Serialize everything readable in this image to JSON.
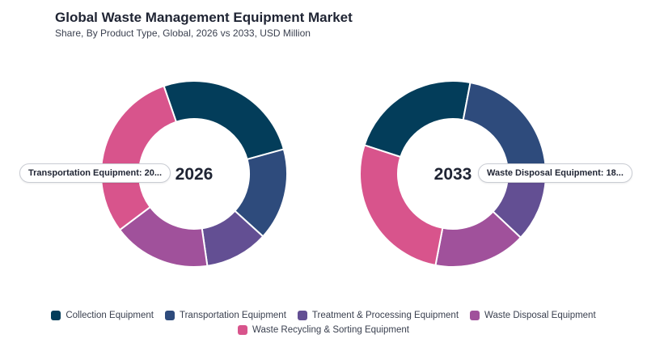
{
  "title": "Global Waste Management Equipment Market",
  "subtitle": "Share, By Product Type, Global, 2026 vs 2033, USD Million",
  "chart_data": [
    {
      "type": "pie",
      "label": "2026",
      "categories": [
        "Collection Equipment",
        "Transportation Equipment",
        "Treatment & Processing Equipment",
        "Waste Disposal Equipment",
        "Waste Recycling & Sorting Equipment"
      ],
      "values": [
        26,
        16,
        11,
        17,
        30
      ],
      "tooltip": "Transportation Equipment: 20..."
    },
    {
      "type": "pie",
      "label": "2033",
      "categories": [
        "Collection Equipment",
        "Transportation Equipment",
        "Treatment & Processing Equipment",
        "Waste Disposal Equipment",
        "Waste Recycling & Sorting Equipment"
      ],
      "values": [
        23,
        23,
        11,
        16,
        27
      ],
      "tooltip": "Waste Disposal Equipment: 18..."
    }
  ],
  "legend": [
    {
      "label": "Collection Equipment",
      "color": "#033d5a"
    },
    {
      "label": "Transportation Equipment",
      "color": "#2e4b7c"
    },
    {
      "label": "Treatment & Processing Equipment",
      "color": "#634f93"
    },
    {
      "label": "Waste Disposal Equipment",
      "color": "#a0519b"
    },
    {
      "label": "Waste Recycling & Sorting Equipment",
      "color": "#d8548c"
    }
  ]
}
